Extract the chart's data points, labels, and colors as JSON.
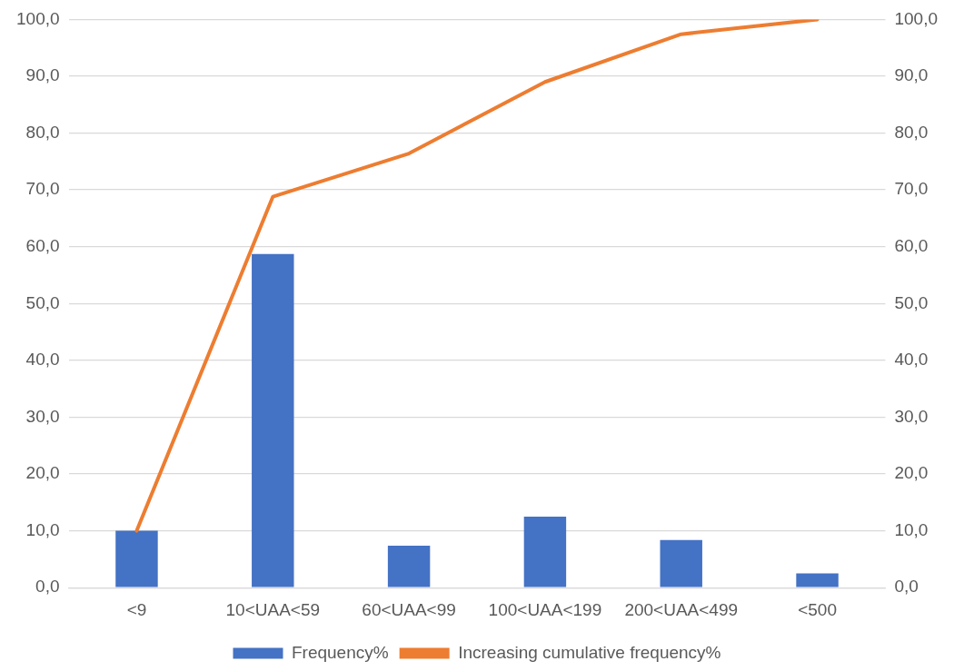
{
  "chart_data": {
    "type": "bar",
    "categories": [
      "<9",
      "10<UAA<59",
      "60<UAA<99",
      "100<UAA<199",
      "200<UAA<499",
      "<500"
    ],
    "series": [
      {
        "name": "Frequency%",
        "color": "#4472c4",
        "values": [
          10.0,
          58.7,
          7.4,
          12.5,
          8.4,
          2.5
        ]
      },
      {
        "name": "Increasing cumulative frequency%",
        "type": "line",
        "axis": "y2",
        "color": "#ed7d31",
        "values": [
          10.0,
          68.8,
          76.4,
          89.0,
          97.4,
          100.0
        ]
      }
    ],
    "ylim": [
      0,
      100
    ],
    "yticks": [
      {
        "value": 0,
        "label": "0,0"
      },
      {
        "value": 10,
        "label": "10,0"
      },
      {
        "value": 20,
        "label": "20,0"
      },
      {
        "value": 30,
        "label": "30,0"
      },
      {
        "value": 40,
        "label": "40,0"
      },
      {
        "value": 50,
        "label": "50,0"
      },
      {
        "value": 60,
        "label": "60,0"
      },
      {
        "value": 70,
        "label": "70,0"
      },
      {
        "value": 80,
        "label": "80,0"
      },
      {
        "value": 90,
        "label": "90,0"
      },
      {
        "value": 100,
        "label": "100,0"
      }
    ],
    "y2lim": [
      0,
      100
    ],
    "y2ticks": [
      {
        "value": 0,
        "label": "0,0"
      },
      {
        "value": 10,
        "label": "10,0"
      },
      {
        "value": 20,
        "label": "20,0"
      },
      {
        "value": 30,
        "label": "30,0"
      },
      {
        "value": 40,
        "label": "40,0"
      },
      {
        "value": 50,
        "label": "50,0"
      },
      {
        "value": 60,
        "label": "60,0"
      },
      {
        "value": 70,
        "label": "70,0"
      },
      {
        "value": 80,
        "label": "80,0"
      },
      {
        "value": 90,
        "label": "90,0"
      },
      {
        "value": 100,
        "label": "100,0"
      }
    ],
    "grid": "y",
    "legend": "bottom",
    "marker": "none",
    "line_style": "solid"
  }
}
